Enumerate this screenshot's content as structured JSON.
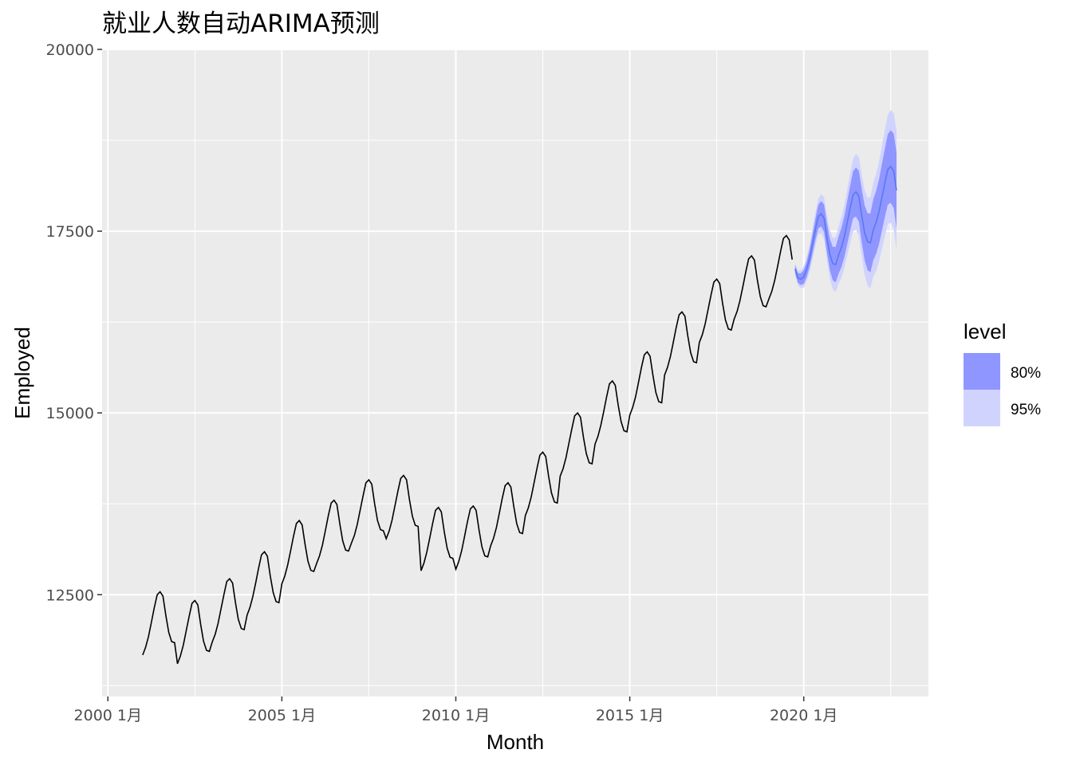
{
  "chart_data": {
    "type": "line",
    "title": "就业人数自动ARIMA预测",
    "xlabel": "Month",
    "ylabel": "Employed",
    "x_ticks": [
      "2000 1月",
      "2005 1月",
      "2010 1月",
      "2015 1月",
      "2020 1月"
    ],
    "y_ticks": [
      "12500",
      "15000",
      "17500",
      "20000"
    ],
    "ylim": [
      11100,
      20000
    ],
    "xlim": [
      "1999-11",
      "2023-08"
    ],
    "grid": true,
    "legend_position": "right",
    "legend": {
      "title": "level",
      "items": [
        {
          "label": "80%",
          "color": "#8f96ff"
        },
        {
          "label": "95%",
          "color": "#d1d3ff"
        }
      ]
    },
    "colors": {
      "history": "#000000",
      "forecast_mean": "#5a78f2",
      "band_80": "#8f96ff",
      "band_95": "#d1d3ff",
      "panel": "#ebebeb",
      "grid": "#ffffff"
    },
    "pattern_months": [
      {
        "month": 1,
        "offset": -230
      },
      {
        "month": 2,
        "offset": -125
      },
      {
        "month": 3,
        "offset": 25
      },
      {
        "month": 4,
        "offset": 220
      },
      {
        "month": 5,
        "offset": 420
      },
      {
        "month": 6,
        "offset": 600
      },
      {
        "month": 7,
        "offset": 640
      },
      {
        "month": 8,
        "offset": 580
      },
      {
        "month": 9,
        "offset": 310
      },
      {
        "month": 10,
        "offset": 80
      },
      {
        "month": 11,
        "offset": -45
      },
      {
        "month": 12,
        "offset": -60
      }
    ],
    "history_levels": [
      {
        "year": 2001,
        "level": 11900
      },
      {
        "year": 2002,
        "level": 11780
      },
      {
        "year": 2003,
        "level": 12080
      },
      {
        "year": 2004,
        "level": 12450
      },
      {
        "year": 2005,
        "level": 12880
      },
      {
        "year": 2006,
        "level": 13160
      },
      {
        "year": 2007,
        "level": 13440
      },
      {
        "year": 2008,
        "level": 13500
      },
      {
        "year": 2009,
        "level": 13060
      },
      {
        "year": 2010,
        "level": 13080
      },
      {
        "year": 2011,
        "level": 13400
      },
      {
        "year": 2012,
        "level": 13820
      },
      {
        "year": 2013,
        "level": 14360
      },
      {
        "year": 2014,
        "level": 14800
      },
      {
        "year": 2015,
        "level": 15200
      },
      {
        "year": 2016,
        "level": 15750
      },
      {
        "year": 2017,
        "level": 16200
      },
      {
        "year": 2018,
        "level": 16520
      },
      {
        "year": 2019,
        "level": 16800
      }
    ],
    "history_end": "2019-09",
    "forecast_levels": [
      {
        "year": 2019,
        "level": 16900
      },
      {
        "year": 2020,
        "level": 17100
      },
      {
        "year": 2021,
        "level": 17400
      },
      {
        "year": 2022,
        "level": 17750
      }
    ],
    "forecast_start": "2019-10",
    "forecast_end": "2022-09",
    "interval_widths": {
      "start_80": 40,
      "growth_80": 13.5,
      "start_95": 60,
      "growth_95": 21
    }
  }
}
